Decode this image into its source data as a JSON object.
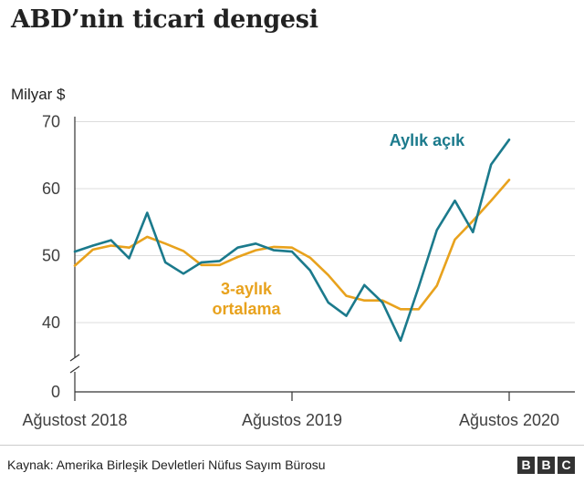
{
  "title": "ABD’nin ticari dengesi",
  "chart_data": {
    "type": "line",
    "title": "ABD’nin ticari dengesi",
    "ylabel": "Milyar $",
    "ylim": [
      0,
      70
    ],
    "y_axis_break": [
      0,
      40
    ],
    "yticks": [
      0,
      40,
      50,
      60,
      70
    ],
    "x_ticks": [
      "Ağustost 2018",
      "Ağustos 2019",
      "Ağustos 2020"
    ],
    "x": [
      "2018-08",
      "2018-09",
      "2018-10",
      "2018-11",
      "2018-12",
      "2019-01",
      "2019-02",
      "2019-03",
      "2019-04",
      "2019-05",
      "2019-06",
      "2019-07",
      "2019-08",
      "2019-09",
      "2019-10",
      "2019-11",
      "2019-12",
      "2020-01",
      "2020-02",
      "2020-03",
      "2020-04",
      "2020-05",
      "2020-06",
      "2020-07",
      "2020-08"
    ],
    "grid": true,
    "series": [
      {
        "name": "Aylık açık",
        "color": "#1b7a8c",
        "values": [
          50.6,
          51.5,
          52.3,
          49.6,
          56.4,
          49.0,
          47.3,
          49.0,
          49.2,
          51.2,
          51.8,
          50.8,
          50.6,
          47.8,
          43.0,
          41.0,
          45.6,
          43.0,
          37.3,
          45.3,
          53.8,
          58.2,
          53.5,
          63.6,
          67.3
        ]
      },
      {
        "name": "3-aylık ortalama",
        "color": "#e8a21d",
        "values": [
          48.5,
          50.9,
          51.5,
          51.2,
          52.8,
          51.8,
          50.7,
          48.6,
          48.6,
          49.8,
          50.8,
          51.3,
          51.2,
          49.7,
          47.1,
          44.0,
          43.3,
          43.3,
          42.0,
          42.0,
          45.5,
          52.4,
          55.2,
          58.2,
          61.3
        ]
      }
    ]
  },
  "footer": {
    "source": "Kaynak: Amerika Birleşik Devletleri Nüfus Sayım Bürosu",
    "logo_letters": [
      "B",
      "B",
      "C"
    ]
  }
}
